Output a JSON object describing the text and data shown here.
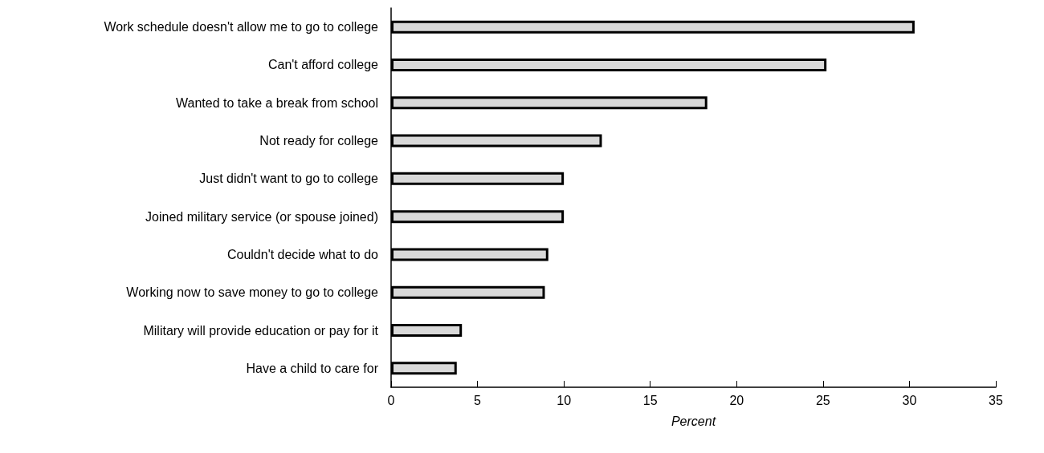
{
  "chart_data": {
    "type": "bar",
    "orientation": "horizontal",
    "xlabel": "Percent",
    "categories": [
      "Work schedule doesn't allow me to go to college",
      "Can't afford college",
      "Wanted to take a break from school",
      "Not ready for college",
      "Just didn't want to go to college",
      "Joined military service (or spouse joined)",
      "Couldn't decide what to do",
      "Working now to save money to go to college",
      "Military will provide education or pay for it",
      "Have a child to care for"
    ],
    "values": [
      30.3,
      25.2,
      18.3,
      12.2,
      10.0,
      10.0,
      9.1,
      8.9,
      4.1,
      3.8
    ],
    "color": "#d9d9d9",
    "xlim": [
      0,
      35
    ],
    "xticks": [
      0,
      5,
      10,
      15,
      20,
      25,
      30,
      35
    ],
    "grid": false
  }
}
